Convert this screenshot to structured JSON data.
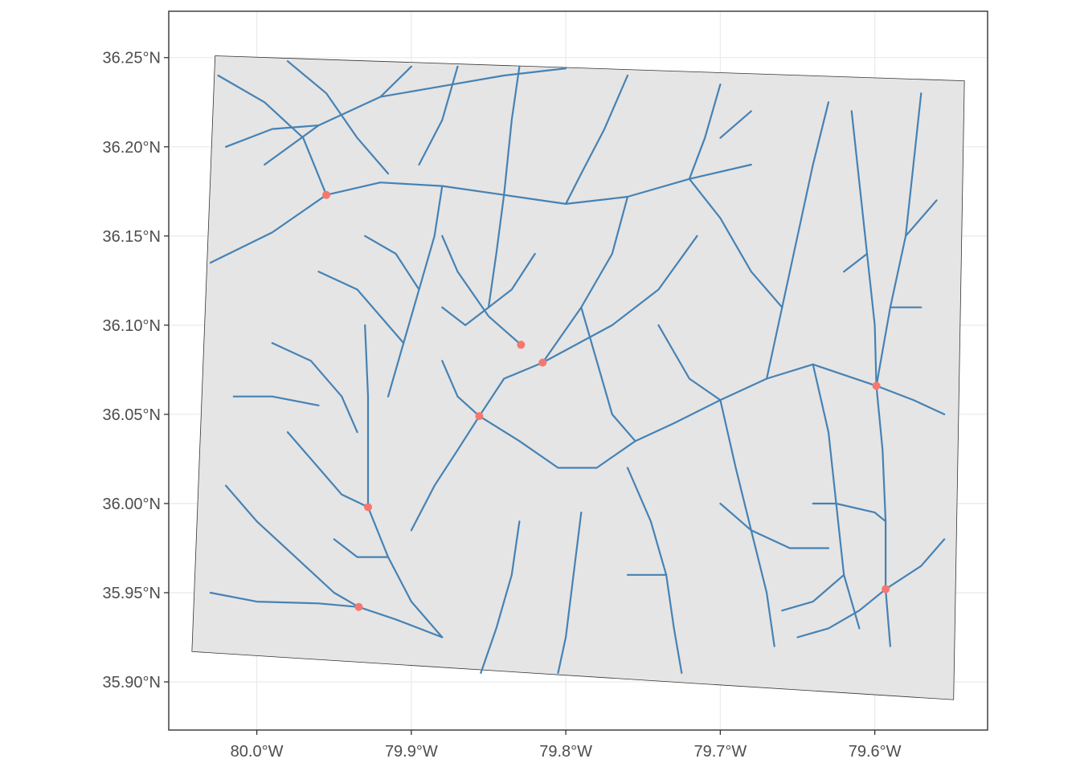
{
  "map": {
    "x_ticks": [
      {
        "value": -80.0,
        "label": "80.0°W"
      },
      {
        "value": -79.9,
        "label": "79.9°W"
      },
      {
        "value": -79.8,
        "label": "79.8°W"
      },
      {
        "value": -79.7,
        "label": "79.7°W"
      },
      {
        "value": -79.6,
        "label": "79.6°W"
      }
    ],
    "y_ticks": [
      {
        "value": 35.9,
        "label": "35.90°N"
      },
      {
        "value": 35.95,
        "label": "35.95°N"
      },
      {
        "value": 36.0,
        "label": "36.00°N"
      },
      {
        "value": 36.05,
        "label": "36.05°N"
      },
      {
        "value": 36.1,
        "label": "36.10°N"
      },
      {
        "value": 36.15,
        "label": "36.15°N"
      },
      {
        "value": 36.2,
        "label": "36.20°N"
      },
      {
        "value": 36.25,
        "label": "36.25°N"
      }
    ],
    "xlim": [
      -80.057,
      -79.527
    ],
    "ylim": [
      35.873,
      36.276
    ],
    "area_polygon": [
      [
        -80.027,
        36.251
      ],
      [
        -79.542,
        36.237
      ],
      [
        -79.549,
        35.89
      ],
      [
        -80.042,
        35.917
      ]
    ],
    "points": [
      {
        "lon": -79.955,
        "lat": 36.173
      },
      {
        "lon": -79.829,
        "lat": 36.089
      },
      {
        "lon": -79.815,
        "lat": 36.079
      },
      {
        "lon": -79.856,
        "lat": 36.049
      },
      {
        "lon": -79.599,
        "lat": 36.066
      },
      {
        "lon": -79.928,
        "lat": 35.998
      },
      {
        "lon": -79.934,
        "lat": 35.942
      },
      {
        "lon": -79.593,
        "lat": 35.952
      }
    ],
    "rivers": [
      [
        [
          -79.995,
          36.19
        ],
        [
          -79.96,
          36.212
        ],
        [
          -79.92,
          36.228
        ],
        [
          -79.88,
          36.234
        ],
        [
          -79.84,
          36.24
        ],
        [
          -79.8,
          36.244
        ]
      ],
      [
        [
          -80.03,
          36.135
        ],
        [
          -79.99,
          36.152
        ],
        [
          -79.955,
          36.173
        ],
        [
          -79.92,
          36.18
        ],
        [
          -79.88,
          36.178
        ],
        [
          -79.84,
          36.173
        ],
        [
          -79.8,
          36.168
        ],
        [
          -79.76,
          36.172
        ],
        [
          -79.72,
          36.182
        ],
        [
          -79.68,
          36.19
        ]
      ],
      [
        [
          -79.98,
          36.248
        ],
        [
          -79.955,
          36.23
        ],
        [
          -79.935,
          36.205
        ],
        [
          -79.915,
          36.185
        ]
      ],
      [
        [
          -79.87,
          36.245
        ],
        [
          -79.88,
          36.215
        ],
        [
          -79.895,
          36.19
        ]
      ],
      [
        [
          -79.76,
          36.24
        ],
        [
          -79.775,
          36.21
        ],
        [
          -79.79,
          36.185
        ],
        [
          -79.8,
          36.168
        ]
      ],
      [
        [
          -79.7,
          36.235
        ],
        [
          -79.71,
          36.205
        ],
        [
          -79.72,
          36.182
        ]
      ],
      [
        [
          -79.88,
          36.178
        ],
        [
          -79.885,
          36.15
        ],
        [
          -79.895,
          36.12
        ],
        [
          -79.905,
          36.09
        ],
        [
          -79.915,
          36.06
        ]
      ],
      [
        [
          -79.84,
          36.173
        ],
        [
          -79.845,
          36.14
        ],
        [
          -79.85,
          36.11
        ]
      ],
      [
        [
          -79.76,
          36.172
        ],
        [
          -79.77,
          36.14
        ],
        [
          -79.79,
          36.11
        ],
        [
          -79.815,
          36.079
        ]
      ],
      [
        [
          -79.829,
          36.089
        ],
        [
          -79.85,
          36.105
        ],
        [
          -79.87,
          36.13
        ],
        [
          -79.88,
          36.15
        ]
      ],
      [
        [
          -79.715,
          36.15
        ],
        [
          -79.74,
          36.12
        ],
        [
          -79.77,
          36.1
        ],
        [
          -79.815,
          36.079
        ],
        [
          -79.84,
          36.07
        ],
        [
          -79.856,
          36.049
        ]
      ],
      [
        [
          -79.856,
          36.049
        ],
        [
          -79.87,
          36.03
        ],
        [
          -79.885,
          36.01
        ],
        [
          -79.9,
          35.985
        ]
      ],
      [
        [
          -79.856,
          36.049
        ],
        [
          -79.83,
          36.035
        ],
        [
          -79.805,
          36.02
        ],
        [
          -79.78,
          36.02
        ],
        [
          -79.755,
          36.035
        ],
        [
          -79.73,
          36.045
        ],
        [
          -79.7,
          36.058
        ],
        [
          -79.67,
          36.07
        ],
        [
          -79.64,
          36.078
        ],
        [
          -79.599,
          36.066
        ]
      ],
      [
        [
          -79.93,
          36.1
        ],
        [
          -79.928,
          36.06
        ],
        [
          -79.928,
          36.03
        ],
        [
          -79.928,
          35.998
        ],
        [
          -79.915,
          35.97
        ],
        [
          -79.9,
          35.945
        ],
        [
          -79.88,
          35.925
        ]
      ],
      [
        [
          -80.0,
          35.99
        ],
        [
          -79.975,
          35.97
        ],
        [
          -79.95,
          35.95
        ],
        [
          -79.934,
          35.942
        ],
        [
          -79.91,
          35.935
        ],
        [
          -79.88,
          35.925
        ]
      ],
      [
        [
          -80.03,
          35.95
        ],
        [
          -80.0,
          35.945
        ],
        [
          -79.96,
          35.944
        ],
        [
          -79.934,
          35.942
        ]
      ],
      [
        [
          -79.98,
          36.04
        ],
        [
          -79.96,
          36.02
        ],
        [
          -79.945,
          36.005
        ],
        [
          -79.928,
          35.998
        ]
      ],
      [
        [
          -79.99,
          36.09
        ],
        [
          -79.965,
          36.08
        ],
        [
          -79.945,
          36.06
        ],
        [
          -79.935,
          36.04
        ]
      ],
      [
        [
          -79.83,
          35.99
        ],
        [
          -79.835,
          35.96
        ],
        [
          -79.845,
          35.93
        ],
        [
          -79.855,
          35.905
        ]
      ],
      [
        [
          -79.79,
          35.995
        ],
        [
          -79.795,
          35.96
        ],
        [
          -79.8,
          35.925
        ],
        [
          -79.805,
          35.905
        ]
      ],
      [
        [
          -79.76,
          36.02
        ],
        [
          -79.745,
          35.99
        ],
        [
          -79.735,
          35.96
        ],
        [
          -79.73,
          35.93
        ],
        [
          -79.725,
          35.905
        ]
      ],
      [
        [
          -79.7,
          36.058
        ],
        [
          -79.69,
          36.02
        ],
        [
          -79.68,
          35.985
        ],
        [
          -79.67,
          35.95
        ],
        [
          -79.665,
          35.92
        ]
      ],
      [
        [
          -79.64,
          36.078
        ],
        [
          -79.63,
          36.04
        ],
        [
          -79.625,
          36.0
        ],
        [
          -79.62,
          35.96
        ],
        [
          -79.61,
          35.93
        ]
      ],
      [
        [
          -79.599,
          36.066
        ],
        [
          -79.595,
          36.03
        ],
        [
          -79.593,
          35.99
        ],
        [
          -79.593,
          35.952
        ],
        [
          -79.59,
          35.92
        ]
      ],
      [
        [
          -79.599,
          36.066
        ],
        [
          -79.6,
          36.1
        ],
        [
          -79.605,
          36.14
        ],
        [
          -79.61,
          36.18
        ],
        [
          -79.615,
          36.22
        ]
      ],
      [
        [
          -79.599,
          36.066
        ],
        [
          -79.575,
          36.058
        ],
        [
          -79.555,
          36.05
        ]
      ],
      [
        [
          -79.593,
          35.952
        ],
        [
          -79.57,
          35.965
        ],
        [
          -79.555,
          35.98
        ]
      ],
      [
        [
          -79.593,
          35.952
        ],
        [
          -79.61,
          35.94
        ],
        [
          -79.63,
          35.93
        ],
        [
          -79.65,
          35.925
        ]
      ],
      [
        [
          -79.67,
          36.07
        ],
        [
          -79.66,
          36.11
        ],
        [
          -79.65,
          36.15
        ],
        [
          -79.64,
          36.19
        ],
        [
          -79.63,
          36.225
        ]
      ],
      [
        [
          -79.72,
          36.182
        ],
        [
          -79.7,
          36.16
        ],
        [
          -79.68,
          36.13
        ],
        [
          -79.66,
          36.11
        ]
      ],
      [
        [
          -79.57,
          36.23
        ],
        [
          -79.575,
          36.19
        ],
        [
          -79.58,
          36.15
        ],
        [
          -79.59,
          36.11
        ],
        [
          -79.599,
          36.066
        ]
      ],
      [
        [
          -80.02,
          36.2
        ],
        [
          -79.99,
          36.21
        ],
        [
          -79.96,
          36.212
        ]
      ],
      [
        [
          -80.025,
          36.24
        ],
        [
          -79.995,
          36.225
        ],
        [
          -79.97,
          36.205
        ],
        [
          -79.955,
          36.173
        ]
      ],
      [
        [
          -79.9,
          36.245
        ],
        [
          -79.92,
          36.228
        ]
      ],
      [
        [
          -79.83,
          36.245
        ],
        [
          -79.835,
          36.215
        ],
        [
          -79.84,
          36.173
        ]
      ],
      [
        [
          -79.74,
          36.1
        ],
        [
          -79.72,
          36.07
        ],
        [
          -79.7,
          36.058
        ]
      ],
      [
        [
          -79.79,
          36.11
        ],
        [
          -79.78,
          36.08
        ],
        [
          -79.77,
          36.05
        ],
        [
          -79.755,
          36.035
        ]
      ],
      [
        [
          -80.015,
          36.06
        ],
        [
          -79.99,
          36.06
        ],
        [
          -79.96,
          36.055
        ]
      ],
      [
        [
          -80.02,
          36.01
        ],
        [
          -80.0,
          35.99
        ]
      ],
      [
        [
          -79.95,
          35.98
        ],
        [
          -79.935,
          35.97
        ],
        [
          -79.915,
          35.97
        ]
      ],
      [
        [
          -79.88,
          36.08
        ],
        [
          -79.87,
          36.06
        ],
        [
          -79.856,
          36.049
        ]
      ],
      [
        [
          -79.7,
          36.0
        ],
        [
          -79.68,
          35.985
        ],
        [
          -79.655,
          35.975
        ],
        [
          -79.63,
          35.975
        ]
      ],
      [
        [
          -79.76,
          35.96
        ],
        [
          -79.735,
          35.96
        ]
      ],
      [
        [
          -79.64,
          36.0
        ],
        [
          -79.625,
          36.0
        ],
        [
          -79.6,
          35.995
        ],
        [
          -79.593,
          35.99
        ]
      ],
      [
        [
          -79.66,
          35.94
        ],
        [
          -79.64,
          35.945
        ],
        [
          -79.62,
          35.96
        ]
      ],
      [
        [
          -79.57,
          36.11
        ],
        [
          -79.59,
          36.11
        ]
      ],
      [
        [
          -79.56,
          36.17
        ],
        [
          -79.58,
          36.15
        ]
      ],
      [
        [
          -79.62,
          36.13
        ],
        [
          -79.605,
          36.14
        ]
      ],
      [
        [
          -79.68,
          36.22
        ],
        [
          -79.7,
          36.205
        ]
      ],
      [
        [
          -79.93,
          36.15
        ],
        [
          -79.91,
          36.14
        ],
        [
          -79.895,
          36.12
        ]
      ],
      [
        [
          -79.96,
          36.13
        ],
        [
          -79.935,
          36.12
        ],
        [
          -79.905,
          36.09
        ]
      ],
      [
        [
          -79.82,
          36.14
        ],
        [
          -79.835,
          36.12
        ],
        [
          -79.85,
          36.11
        ]
      ],
      [
        [
          -79.88,
          36.11
        ],
        [
          -79.865,
          36.1
        ],
        [
          -79.85,
          36.11
        ]
      ]
    ]
  }
}
